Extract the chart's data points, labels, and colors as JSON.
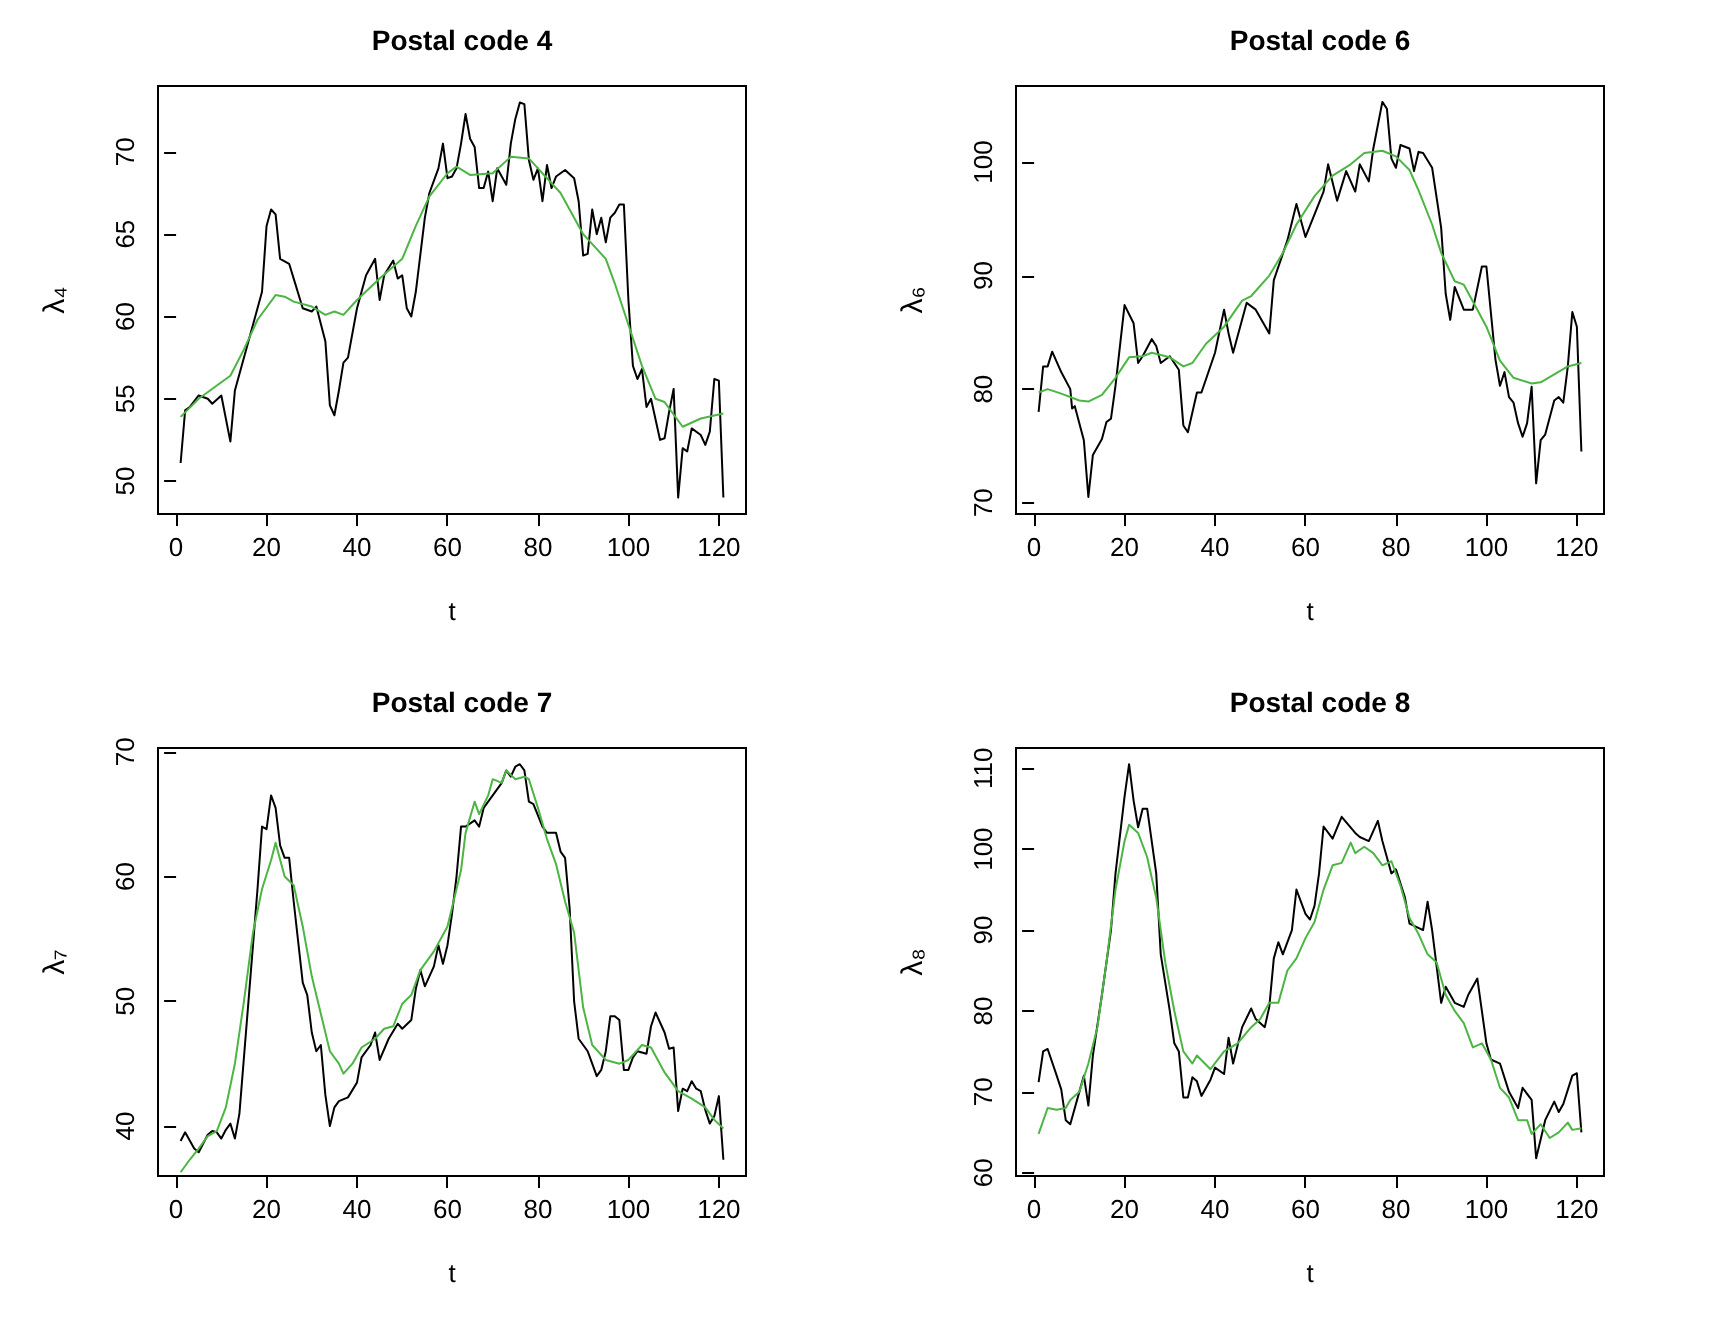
{
  "chart_data": [
    {
      "type": "line",
      "title": "Postal code 4",
      "xlabel": "t",
      "ylabel": "λ₄",
      "xlim": [
        -4,
        126
      ],
      "xticks": [
        0,
        20,
        40,
        60,
        80,
        100,
        120
      ],
      "ylim": [
        48,
        74
      ],
      "yticks": [
        50,
        55,
        60,
        65,
        70
      ],
      "marker": "none",
      "line_style": "solid",
      "series": [
        {
          "color": "#000000",
          "x": [
            1,
            2,
            3,
            5,
            7,
            8,
            10,
            12,
            13,
            16,
            18,
            19,
            20,
            21,
            22,
            23,
            25,
            26,
            28,
            30,
            31,
            33,
            34,
            35,
            36,
            37,
            38,
            40,
            42,
            44,
            45,
            46,
            48,
            49,
            50,
            51,
            52,
            53,
            55,
            56,
            58,
            59,
            60,
            61,
            62,
            63,
            64,
            65,
            66,
            67,
            68,
            69,
            70,
            71,
            72,
            73,
            74,
            75,
            76,
            77,
            78,
            79,
            80,
            81,
            82,
            83,
            84,
            86,
            88,
            89,
            90,
            91,
            92,
            93,
            94,
            95,
            96,
            97,
            98,
            99,
            100,
            101,
            102,
            103,
            104,
            105,
            107,
            108,
            109,
            110,
            111,
            112,
            113,
            114,
            116,
            117,
            118,
            119,
            120,
            121
          ],
          "values": [
            51.1,
            54.3,
            54.5,
            55.2,
            55.0,
            54.7,
            55.2,
            52.4,
            55.5,
            58.5,
            60.5,
            61.5,
            65.5,
            66.5,
            66.2,
            63.5,
            63.2,
            62.3,
            60.5,
            60.3,
            60.6,
            58.5,
            54.6,
            54.0,
            55.5,
            57.2,
            57.5,
            60.5,
            62.5,
            63.5,
            61.0,
            62.5,
            63.4,
            62.3,
            62.5,
            60.5,
            60.0,
            61.5,
            66.0,
            67.5,
            69.0,
            70.5,
            68.4,
            68.5,
            69.0,
            70.5,
            72.3,
            70.8,
            70.3,
            67.8,
            67.8,
            68.8,
            67.0,
            69.0,
            68.5,
            68.0,
            70.5,
            72.0,
            73.0,
            72.9,
            69.5,
            68.3,
            69.0,
            67.0,
            69.2,
            67.8,
            68.5,
            68.9,
            68.4,
            67.0,
            63.7,
            63.8,
            66.5,
            65.0,
            66.0,
            64.5,
            66.0,
            66.3,
            66.8,
            66.8,
            61.0,
            57.0,
            56.2,
            56.8,
            54.5,
            55.0,
            52.5,
            52.6,
            54.2,
            55.6,
            49.0,
            52.0,
            51.8,
            53.2,
            52.8,
            52.2,
            53.0,
            56.2,
            56.1,
            49.0
          ]
        },
        {
          "color": "#4cb543",
          "x": [
            1,
            5,
            10,
            12,
            15,
            18,
            22,
            24,
            26,
            30,
            33,
            35,
            37,
            40,
            45,
            50,
            53,
            56,
            60,
            62,
            65,
            70,
            74,
            78,
            80,
            85,
            90,
            95,
            97,
            100,
            103,
            106,
            108,
            112,
            116,
            121
          ],
          "values": [
            53.9,
            55.0,
            56.0,
            56.4,
            58.0,
            59.8,
            61.3,
            61.2,
            60.9,
            60.6,
            60.1,
            60.3,
            60.1,
            61.0,
            62.3,
            63.5,
            65.5,
            67.3,
            68.7,
            69.1,
            68.6,
            68.7,
            69.7,
            69.6,
            69.0,
            67.5,
            65.0,
            63.5,
            62.0,
            59.5,
            57.0,
            55.0,
            54.8,
            53.3,
            53.8,
            54.1
          ]
        }
      ]
    },
    {
      "type": "line",
      "title": "Postal code 6",
      "xlabel": "t",
      "ylabel": "λ₆",
      "xlim": [
        -4,
        126
      ],
      "xticks": [
        0,
        20,
        40,
        60,
        80,
        100,
        120
      ],
      "ylim": [
        69,
        106.7
      ],
      "yticks": [
        70,
        80,
        90,
        100
      ],
      "marker": "none",
      "line_style": "solid",
      "series": [
        {
          "color": "#000000",
          "x": [
            1,
            2,
            3,
            4,
            6,
            8,
            8.4,
            9,
            11,
            12,
            13,
            15,
            16,
            17,
            18,
            20,
            22,
            23,
            24,
            26,
            27,
            28,
            30,
            32,
            33,
            34,
            36,
            37,
            40,
            42,
            43,
            44,
            47,
            49,
            52,
            53,
            56,
            58,
            60,
            62,
            64,
            65,
            67,
            69,
            71,
            72,
            74,
            75,
            77,
            78,
            79,
            80,
            81,
            83,
            84,
            85,
            86,
            88,
            90,
            91,
            92,
            93,
            95,
            97,
            99,
            100,
            102,
            103,
            104,
            105,
            106,
            107,
            108,
            109,
            110,
            111,
            112,
            113,
            115,
            116,
            117,
            118,
            119,
            120,
            121
          ],
          "values": [
            78.0,
            82.0,
            82.0,
            83.3,
            81.5,
            80.0,
            78.3,
            78.5,
            75.5,
            70.5,
            74.2,
            75.6,
            77.1,
            77.4,
            80.3,
            87.4,
            85.8,
            82.3,
            82.9,
            84.4,
            83.8,
            82.3,
            82.9,
            81.7,
            76.8,
            76.2,
            79.7,
            79.7,
            83.2,
            87.0,
            84.9,
            83.2,
            87.6,
            87.0,
            84.9,
            89.6,
            93.1,
            96.3,
            93.4,
            95.4,
            97.4,
            99.8,
            96.6,
            99.2,
            97.4,
            99.8,
            98.3,
            101.2,
            105.3,
            104.7,
            100.3,
            99.5,
            101.5,
            101.2,
            99.2,
            100.9,
            100.8,
            99.5,
            94.2,
            88.4,
            86.1,
            89.0,
            87.0,
            87.0,
            90.8,
            90.8,
            82.6,
            80.3,
            81.5,
            79.3,
            78.8,
            77.0,
            75.8,
            77.0,
            80.2,
            71.7,
            75.5,
            76.0,
            79.0,
            79.3,
            78.8,
            82.0,
            86.8,
            85.5,
            74.5
          ]
        },
        {
          "color": "#4cb543",
          "x": [
            1,
            3,
            6,
            10,
            12,
            15,
            18,
            21,
            24,
            26,
            30,
            33,
            35,
            38,
            42,
            46,
            48,
            52,
            55,
            58,
            62,
            66,
            70,
            73,
            77,
            80,
            83,
            85,
            88,
            90,
            93,
            95,
            98,
            100,
            103,
            106,
            110,
            112,
            115,
            118,
            121
          ],
          "values": [
            79.7,
            80.0,
            79.6,
            79.0,
            78.9,
            79.5,
            81.0,
            82.8,
            82.9,
            83.2,
            82.8,
            82.0,
            82.3,
            84.0,
            85.5,
            87.8,
            88.2,
            90.0,
            92.0,
            94.5,
            97.0,
            98.8,
            99.8,
            100.8,
            101.0,
            100.5,
            99.3,
            97.5,
            94.5,
            92.0,
            89.5,
            89.2,
            87.0,
            85.5,
            82.5,
            81.0,
            80.5,
            80.6,
            81.3,
            82.0,
            82.3
          ]
        }
      ]
    },
    {
      "type": "line",
      "title": "Postal code 7",
      "xlabel": "t",
      "ylabel": "λ₇",
      "xlim": [
        -4,
        126
      ],
      "xticks": [
        0,
        20,
        40,
        60,
        80,
        100,
        120
      ],
      "ylim": [
        36,
        70.3
      ],
      "yticks": [
        40,
        50,
        60,
        70
      ],
      "marker": "none",
      "line_style": "solid",
      "series": [
        {
          "color": "#000000",
          "x": [
            1,
            2,
            4,
            5,
            7,
            8,
            9,
            10,
            11,
            12,
            13,
            14,
            16,
            18,
            19,
            20,
            21,
            22,
            23,
            24,
            25,
            26,
            28,
            29,
            30,
            31,
            32,
            33,
            34,
            35,
            36,
            38,
            40,
            41,
            43,
            44,
            45,
            47,
            49,
            50,
            52,
            53,
            54,
            55,
            57,
            58,
            59,
            60,
            61,
            62,
            63,
            64,
            66,
            67,
            68,
            70,
            72,
            73,
            74,
            75,
            76,
            77,
            78,
            79,
            81,
            82,
            84,
            85,
            86,
            87,
            88,
            89,
            91,
            92,
            93,
            94,
            95,
            96,
            97,
            98,
            99,
            100,
            101,
            102,
            104,
            105,
            106,
            107,
            108,
            109,
            110,
            111,
            112,
            113,
            114,
            115,
            116,
            117,
            118,
            119,
            120,
            121
          ],
          "values": [
            38.8,
            39.5,
            38.2,
            37.9,
            39.3,
            39.6,
            39.5,
            39.0,
            39.7,
            40.2,
            39.0,
            41.0,
            50.0,
            59.0,
            64.0,
            63.8,
            66.5,
            65.5,
            62.5,
            61.5,
            61.5,
            58.0,
            51.5,
            50.5,
            47.5,
            46.0,
            46.5,
            42.5,
            40.0,
            41.5,
            42.0,
            42.3,
            43.5,
            45.5,
            46.5,
            47.5,
            45.3,
            47.0,
            48.2,
            47.8,
            48.5,
            51.0,
            52.5,
            51.2,
            52.8,
            54.5,
            53.0,
            54.5,
            57.0,
            60.0,
            64.0,
            64.0,
            64.5,
            64.0,
            65.5,
            66.5,
            67.5,
            68.5,
            68.0,
            68.8,
            69.0,
            68.5,
            66.0,
            65.8,
            64.0,
            63.5,
            63.5,
            62.0,
            61.5,
            57.5,
            50.0,
            47.0,
            46.0,
            45.0,
            44.0,
            44.5,
            46.0,
            48.8,
            48.8,
            48.5,
            44.5,
            44.5,
            45.5,
            46.0,
            45.8,
            48.0,
            49.1,
            48.3,
            47.5,
            46.2,
            46.3,
            41.2,
            43.0,
            42.8,
            43.6,
            43.0,
            42.8,
            41.3,
            40.2,
            40.8,
            42.4,
            37.3
          ]
        },
        {
          "color": "#4cb543",
          "x": [
            1,
            3,
            5,
            7,
            9,
            11,
            13,
            15,
            17,
            19,
            21,
            22,
            24,
            26,
            28,
            30,
            32,
            34,
            36,
            37,
            39,
            41,
            44,
            46,
            48,
            50,
            52,
            54,
            57,
            60,
            61,
            63,
            64,
            66,
            67,
            69,
            70,
            72,
            73,
            75,
            77,
            78,
            80,
            82,
            84,
            86,
            88,
            90,
            92,
            95,
            98,
            100,
            103,
            105,
            108,
            111,
            114,
            117,
            119,
            121
          ],
          "values": [
            36.3,
            37.3,
            38.2,
            39.2,
            39.6,
            41.5,
            45.0,
            50.0,
            55.5,
            59.0,
            61.3,
            62.7,
            60.0,
            59.3,
            56.0,
            52.0,
            49.0,
            46.0,
            45.0,
            44.2,
            45.0,
            46.3,
            47.0,
            47.8,
            48.0,
            49.8,
            50.5,
            52.5,
            54.0,
            56.0,
            57.5,
            60.5,
            63.5,
            66.0,
            65.0,
            66.5,
            67.8,
            67.5,
            68.5,
            67.8,
            68.0,
            67.8,
            65.5,
            63.0,
            61.0,
            58.0,
            55.5,
            49.5,
            46.5,
            45.3,
            45.0,
            45.3,
            46.5,
            46.3,
            44.3,
            42.8,
            42.2,
            41.5,
            40.5,
            39.8
          ]
        }
      ]
    },
    {
      "type": "line",
      "title": "Postal code 8",
      "xlabel": "t",
      "ylabel": "λ₈",
      "xlim": [
        -4,
        126
      ],
      "xticks": [
        0,
        20,
        40,
        60,
        80,
        100,
        120
      ],
      "ylim": [
        59.6,
        112.5
      ],
      "yticks": [
        60,
        70,
        80,
        90,
        100,
        110
      ],
      "marker": "none",
      "line_style": "solid",
      "series": [
        {
          "color": "#000000",
          "x": [
            1,
            2,
            3,
            5,
            6,
            7,
            8,
            10,
            11,
            12,
            13,
            15,
            17,
            18,
            20,
            21,
            22,
            23,
            24,
            25,
            27,
            28,
            30,
            31,
            32,
            33,
            34,
            35,
            36,
            37,
            39,
            40,
            42,
            43,
            44,
            46,
            48,
            49,
            51,
            52,
            53,
            54,
            55,
            57,
            58,
            60,
            61,
            62,
            63,
            64,
            66,
            68,
            71,
            72,
            74,
            76,
            77,
            79,
            80,
            82,
            83,
            86,
            87,
            88,
            90,
            91,
            93,
            95,
            96,
            98,
            100,
            101,
            103,
            105,
            107,
            108,
            110,
            111,
            113,
            115,
            116,
            117,
            119,
            120,
            121
          ],
          "values": [
            71.2,
            75.0,
            75.3,
            72.0,
            70.3,
            66.5,
            66.0,
            70.0,
            72.0,
            68.3,
            74.5,
            82.0,
            90.0,
            97.0,
            106.5,
            110.5,
            106.0,
            102.7,
            105.0,
            105.0,
            97.0,
            87.0,
            80.0,
            76.0,
            75.0,
            69.3,
            69.3,
            71.8,
            71.3,
            69.5,
            71.5,
            73.0,
            72.2,
            76.7,
            73.5,
            78.0,
            80.3,
            79.0,
            78.0,
            80.5,
            86.5,
            88.5,
            87.0,
            90.0,
            95.0,
            92.0,
            91.3,
            93.0,
            97.0,
            102.8,
            101.3,
            104.0,
            102.0,
            101.5,
            101.0,
            103.5,
            101.0,
            97.0,
            97.5,
            94.0,
            90.8,
            90.0,
            93.5,
            90.0,
            81.0,
            83.0,
            81.0,
            80.5,
            82.0,
            84.0,
            76.0,
            74.0,
            73.5,
            70.0,
            68.0,
            70.5,
            69.0,
            61.8,
            66.5,
            68.8,
            67.5,
            68.5,
            72.0,
            72.3,
            65.0
          ]
        },
        {
          "color": "#4cb543",
          "x": [
            1,
            3,
            5,
            7,
            8,
            10,
            12,
            14,
            16,
            18,
            20,
            21,
            23,
            25,
            27,
            29,
            31,
            33,
            35,
            36,
            39,
            42,
            45,
            48,
            50,
            52,
            54,
            56,
            58,
            60,
            62,
            64,
            66,
            68,
            70,
            71,
            73,
            75,
            77,
            79,
            81,
            83,
            85,
            87,
            89,
            91,
            93,
            95,
            97,
            99,
            101,
            103,
            105,
            107,
            109,
            110,
            112,
            114,
            116,
            118,
            119,
            121
          ],
          "values": [
            64.8,
            68.0,
            67.8,
            68.0,
            69.0,
            70.0,
            73.5,
            78.0,
            86.0,
            95.0,
            101.0,
            103.0,
            102.0,
            99.0,
            94.0,
            86.0,
            80.0,
            75.0,
            73.5,
            74.5,
            72.8,
            75.0,
            76.0,
            78.0,
            79.0,
            81.0,
            81.0,
            85.0,
            86.5,
            89.0,
            91.0,
            95.0,
            98.0,
            98.3,
            100.8,
            99.5,
            100.3,
            99.5,
            98.0,
            98.5,
            95.5,
            91.5,
            89.5,
            87.0,
            86.0,
            82.0,
            80.0,
            78.5,
            75.5,
            76.0,
            74.0,
            70.5,
            69.3,
            66.5,
            66.5,
            64.8,
            66.0,
            64.3,
            65.0,
            66.2,
            65.3,
            65.5
          ]
        }
      ]
    }
  ]
}
